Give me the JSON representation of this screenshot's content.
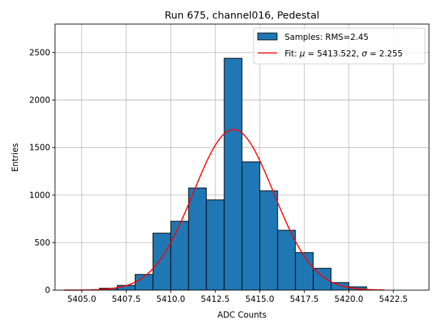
{
  "chart_data": {
    "type": "bar",
    "title": "Run 675, channel016, Pedestal",
    "xlabel": "ADC Counts",
    "ylabel": "Entries",
    "xlim": [
      5403.5,
      5424.5
    ],
    "ylim": [
      0,
      2800
    ],
    "grid": true,
    "legend_position": "top-right",
    "x_ticks": [
      5405.0,
      5407.5,
      5410.0,
      5412.5,
      5415.0,
      5417.5,
      5420.0,
      5422.5
    ],
    "x_tick_labels": [
      "5405.0",
      "5407.5",
      "5410.0",
      "5412.5",
      "5415.0",
      "5417.5",
      "5420.0",
      "5422.5"
    ],
    "y_ticks": [
      0,
      500,
      1000,
      1500,
      2000,
      2500
    ],
    "y_tick_labels": [
      "0",
      "500",
      "1000",
      "1500",
      "2000",
      "2500"
    ],
    "histogram": {
      "name": "Samples: RMS=2.45",
      "color": "#1f77b4",
      "edge_color": "#000000",
      "bin_width": 1.0,
      "bin_left_edges": [
        5406,
        5407,
        5408,
        5409,
        5410,
        5411,
        5412,
        5413,
        5414,
        5415,
        5416,
        5417,
        5418,
        5419,
        5420
      ],
      "values": [
        20,
        50,
        165,
        600,
        725,
        1075,
        950,
        2440,
        1350,
        1045,
        630,
        395,
        230,
        80,
        35
      ]
    },
    "fit": {
      "name": "Fit: μ = 5413.522, σ = 2.255",
      "legend_prefix": "Fit: ",
      "legend_mu": "μ",
      "legend_mu_value": " = 5413.522, ",
      "legend_sigma": "σ",
      "legend_sigma_value": " = 2.255",
      "color": "#ff0000",
      "mu": 5413.522,
      "sigma": 2.255,
      "amplitude": 1690,
      "x_range": [
        5404.0,
        5422.0
      ]
    }
  }
}
